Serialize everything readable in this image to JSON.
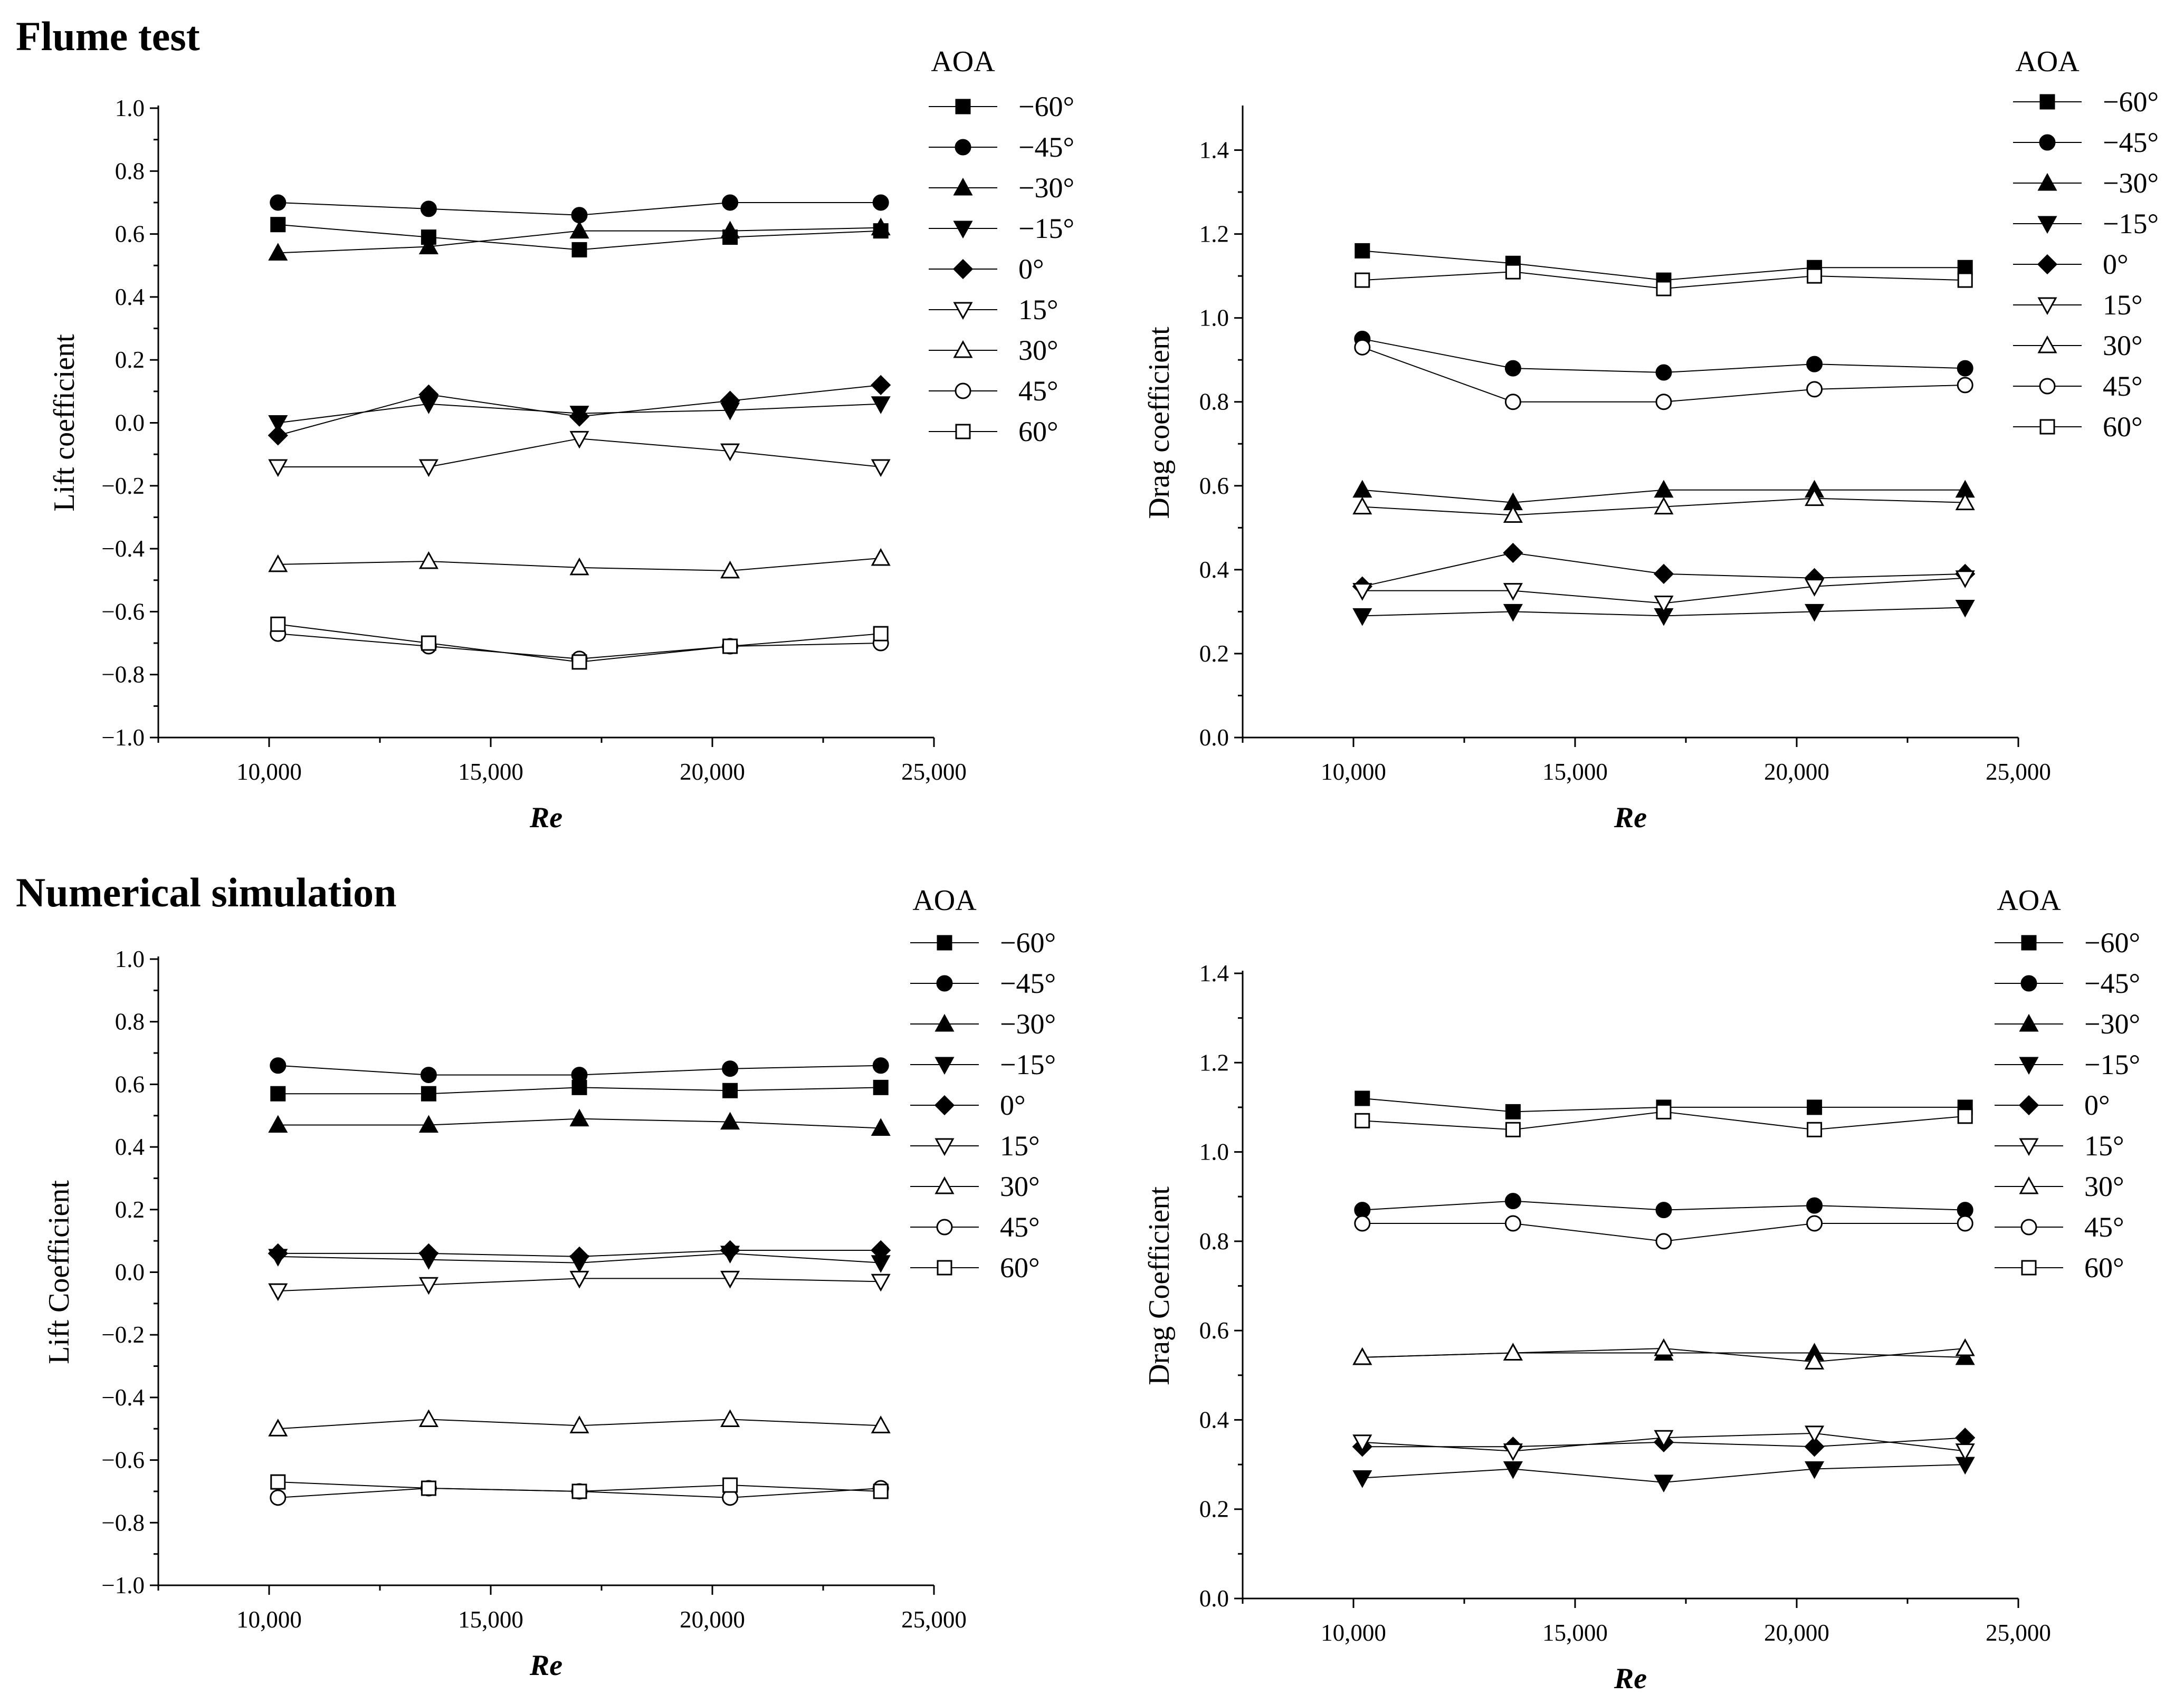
{
  "sections": [
    {
      "title": "Flume test"
    },
    {
      "title": "Numerical simulation"
    }
  ],
  "chart_data": [
    {
      "type": "line",
      "section": "Flume test",
      "xlabel": "Re",
      "ylabel": "Lift coefficient",
      "xlim": [
        7500,
        25000
      ],
      "ylim": [
        -1.0,
        1.0
      ],
      "xticks": [
        10000,
        15000,
        20000,
        25000
      ],
      "xtick_labels": [
        "10,000",
        "15,000",
        "20,000",
        "25,000"
      ],
      "yticks": [
        -1.0,
        -0.8,
        -0.6,
        -0.4,
        -0.2,
        0.0,
        0.2,
        0.4,
        0.6,
        0.8,
        1.0
      ],
      "ytick_labels": [
        "−1.0",
        "−0.8",
        "−0.6",
        "−0.4",
        "−0.2",
        "0.0",
        "0.2",
        "0.4",
        "0.6",
        "0.8",
        "1.0"
      ],
      "legend_title": "AOA",
      "x": [
        10200,
        13600,
        17000,
        20400,
        23800
      ],
      "series": [
        {
          "name": "−60°",
          "marker": "square-filled",
          "values": [
            0.63,
            0.59,
            0.55,
            0.59,
            0.61
          ]
        },
        {
          "name": "−45°",
          "marker": "circle-filled",
          "values": [
            0.7,
            0.68,
            0.66,
            0.7,
            0.7
          ]
        },
        {
          "name": "−30°",
          "marker": "triangle-up-filled",
          "values": [
            0.54,
            0.56,
            0.61,
            0.61,
            0.62
          ]
        },
        {
          "name": "−15°",
          "marker": "triangle-down-filled",
          "values": [
            0.0,
            0.06,
            0.03,
            0.04,
            0.06
          ]
        },
        {
          "name": "0°",
          "marker": "diamond-filled",
          "values": [
            -0.04,
            0.09,
            0.02,
            0.07,
            0.12
          ]
        },
        {
          "name": "15°",
          "marker": "triangle-down-open",
          "values": [
            -0.14,
            -0.14,
            -0.05,
            -0.09,
            -0.14
          ]
        },
        {
          "name": "30°",
          "marker": "triangle-up-open",
          "values": [
            -0.45,
            -0.44,
            -0.46,
            -0.47,
            -0.43
          ]
        },
        {
          "name": "45°",
          "marker": "circle-open",
          "values": [
            -0.67,
            -0.71,
            -0.75,
            -0.71,
            -0.7
          ]
        },
        {
          "name": "60°",
          "marker": "square-open",
          "values": [
            -0.64,
            -0.7,
            -0.76,
            -0.71,
            -0.67
          ]
        }
      ]
    },
    {
      "type": "line",
      "section": "Flume test",
      "xlabel": "Re",
      "ylabel": "Drag coefficient",
      "xlim": [
        7500,
        25000
      ],
      "ylim": [
        0.0,
        1.5
      ],
      "xticks": [
        10000,
        15000,
        20000,
        25000
      ],
      "xtick_labels": [
        "10,000",
        "15,000",
        "20,000",
        "25,000"
      ],
      "yticks": [
        0.0,
        0.2,
        0.4,
        0.6,
        0.8,
        1.0,
        1.2,
        1.4
      ],
      "ytick_labels": [
        "0.0",
        "0.2",
        "0.4",
        "0.6",
        "0.8",
        "1.0",
        "1.2",
        "1.4"
      ],
      "legend_title": "AOA",
      "x": [
        10200,
        13600,
        17000,
        20400,
        23800
      ],
      "series": [
        {
          "name": "−60°",
          "marker": "square-filled",
          "values": [
            1.16,
            1.13,
            1.09,
            1.12,
            1.12
          ]
        },
        {
          "name": "−45°",
          "marker": "circle-filled",
          "values": [
            0.95,
            0.88,
            0.87,
            0.89,
            0.88
          ]
        },
        {
          "name": "−30°",
          "marker": "triangle-up-filled",
          "values": [
            0.59,
            0.56,
            0.59,
            0.59,
            0.59
          ]
        },
        {
          "name": "−15°",
          "marker": "triangle-down-filled",
          "values": [
            0.29,
            0.3,
            0.29,
            0.3,
            0.31
          ]
        },
        {
          "name": "0°",
          "marker": "diamond-filled",
          "values": [
            0.36,
            0.44,
            0.39,
            0.38,
            0.39
          ]
        },
        {
          "name": "15°",
          "marker": "triangle-down-open",
          "values": [
            0.35,
            0.35,
            0.32,
            0.36,
            0.38
          ]
        },
        {
          "name": "30°",
          "marker": "triangle-up-open",
          "values": [
            0.55,
            0.53,
            0.55,
            0.57,
            0.56
          ]
        },
        {
          "name": "45°",
          "marker": "circle-open",
          "values": [
            0.93,
            0.8,
            0.8,
            0.83,
            0.84
          ]
        },
        {
          "name": "60°",
          "marker": "square-open",
          "values": [
            1.09,
            1.11,
            1.07,
            1.1,
            1.09
          ]
        }
      ]
    },
    {
      "type": "line",
      "section": "Numerical simulation",
      "xlabel": "Re",
      "ylabel": "Lift Coefficient",
      "xlim": [
        7500,
        25000
      ],
      "ylim": [
        -1.0,
        1.0
      ],
      "xticks": [
        10000,
        15000,
        20000,
        25000
      ],
      "xtick_labels": [
        "10,000",
        "15,000",
        "20,000",
        "25,000"
      ],
      "yticks": [
        -1.0,
        -0.8,
        -0.6,
        -0.4,
        -0.2,
        0.0,
        0.2,
        0.4,
        0.6,
        0.8,
        1.0
      ],
      "ytick_labels": [
        "−1.0",
        "−0.8",
        "−0.6",
        "−0.4",
        "−0.2",
        "0.0",
        "0.2",
        "0.4",
        "0.6",
        "0.8",
        "1.0"
      ],
      "legend_title": "AOA",
      "x": [
        10200,
        13600,
        17000,
        20400,
        23800
      ],
      "series": [
        {
          "name": "−60°",
          "marker": "square-filled",
          "values": [
            0.57,
            0.57,
            0.59,
            0.58,
            0.59
          ]
        },
        {
          "name": "−45°",
          "marker": "circle-filled",
          "values": [
            0.66,
            0.63,
            0.63,
            0.65,
            0.66
          ]
        },
        {
          "name": "−30°",
          "marker": "triangle-up-filled",
          "values": [
            0.47,
            0.47,
            0.49,
            0.48,
            0.46
          ]
        },
        {
          "name": "−15°",
          "marker": "triangle-down-filled",
          "values": [
            0.05,
            0.04,
            0.03,
            0.06,
            0.03
          ]
        },
        {
          "name": "0°",
          "marker": "diamond-filled",
          "values": [
            0.06,
            0.06,
            0.05,
            0.07,
            0.07
          ]
        },
        {
          "name": "15°",
          "marker": "triangle-down-open",
          "values": [
            -0.06,
            -0.04,
            -0.02,
            -0.02,
            -0.03
          ]
        },
        {
          "name": "30°",
          "marker": "triangle-up-open",
          "values": [
            -0.5,
            -0.47,
            -0.49,
            -0.47,
            -0.49
          ]
        },
        {
          "name": "45°",
          "marker": "circle-open",
          "values": [
            -0.72,
            -0.69,
            -0.7,
            -0.72,
            -0.69
          ]
        },
        {
          "name": "60°",
          "marker": "square-open",
          "values": [
            -0.67,
            -0.69,
            -0.7,
            -0.68,
            -0.7
          ]
        }
      ]
    },
    {
      "type": "line",
      "section": "Numerical simulation",
      "xlabel": "Re",
      "ylabel": "Drag Coefficient",
      "xlim": [
        7500,
        25000
      ],
      "ylim": [
        0.0,
        1.4
      ],
      "xticks": [
        10000,
        15000,
        20000,
        25000
      ],
      "xtick_labels": [
        "10,000",
        "15,000",
        "20,000",
        "25,000"
      ],
      "yticks": [
        0.0,
        0.2,
        0.4,
        0.6,
        0.8,
        1.0,
        1.2,
        1.4
      ],
      "ytick_labels": [
        "0.0",
        "0.2",
        "0.4",
        "0.6",
        "0.8",
        "1.0",
        "1.2",
        "1.4"
      ],
      "legend_title": "AOA",
      "x": [
        10200,
        13600,
        17000,
        20400,
        23800
      ],
      "series": [
        {
          "name": "−60°",
          "marker": "square-filled",
          "values": [
            1.12,
            1.09,
            1.1,
            1.1,
            1.1
          ]
        },
        {
          "name": "−45°",
          "marker": "circle-filled",
          "values": [
            0.87,
            0.89,
            0.87,
            0.88,
            0.87
          ]
        },
        {
          "name": "−30°",
          "marker": "triangle-up-filled",
          "values": [
            0.54,
            0.55,
            0.55,
            0.55,
            0.54
          ]
        },
        {
          "name": "−15°",
          "marker": "triangle-down-filled",
          "values": [
            0.27,
            0.29,
            0.26,
            0.29,
            0.3
          ]
        },
        {
          "name": "0°",
          "marker": "diamond-filled",
          "values": [
            0.34,
            0.34,
            0.35,
            0.34,
            0.36
          ]
        },
        {
          "name": "15°",
          "marker": "triangle-down-open",
          "values": [
            0.35,
            0.33,
            0.36,
            0.37,
            0.33
          ]
        },
        {
          "name": "30°",
          "marker": "triangle-up-open",
          "values": [
            0.54,
            0.55,
            0.56,
            0.53,
            0.56
          ]
        },
        {
          "name": "45°",
          "marker": "circle-open",
          "values": [
            0.84,
            0.84,
            0.8,
            0.84,
            0.84
          ]
        },
        {
          "name": "60°",
          "marker": "square-open",
          "values": [
            1.07,
            1.05,
            1.09,
            1.05,
            1.08
          ]
        }
      ]
    }
  ]
}
